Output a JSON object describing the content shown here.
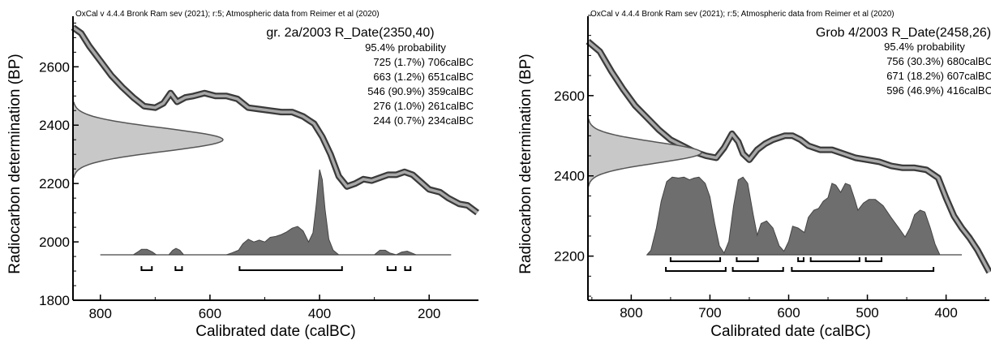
{
  "charts": [
    {
      "header": "OxCal v 4.4.4 Bronk Ram sev (2021); r:5; Atmospheric data from Reimer et al (2020)",
      "sample_title": "gr. 2a/2003 R_Date(2350,40)",
      "probability_heading": "95.4% probability",
      "ranges_text": [
        "725 (1.7%) 706calBC",
        "663 (1.2%) 651calBC",
        "546 (90.9%) 359calBC",
        "276 (1.0%) 261calBC",
        "244 (0.7%) 234calBC"
      ],
      "xlabel": "Calibrated date (calBC)",
      "ylabel": "Radiocarbon determination (BP)",
      "x_ticks": [
        "800",
        "600",
        "400",
        "200"
      ],
      "y_ticks": [
        "1800",
        "2000",
        "2200",
        "2400",
        "2600"
      ]
    },
    {
      "header": "OxCal v 4.4.4 Bronk Ram sev (2021); r:5; Atmospheric data from Reimer et al (2020)",
      "sample_title": "Grob 4/2003 R_Date(2458,26)",
      "probability_heading": "95.4% probability",
      "ranges_text": [
        "756 (30.3%) 680calBC",
        "671 (18.2%) 607calBC",
        "596 (46.9%) 416calBC"
      ],
      "xlabel": "Calibrated date (calBC)",
      "ylabel": "Radiocarbon determination (BP)",
      "x_ticks": [
        "800",
        "700",
        "600",
        "500",
        "400"
      ],
      "y_ticks": [
        "2200",
        "2400",
        "2600"
      ]
    }
  ],
  "chart_data": [
    {
      "type": "area",
      "xlim": [
        850,
        110
      ],
      "ylim": [
        1800,
        2790
      ],
      "x_ticks": [
        800,
        600,
        400,
        200
      ],
      "y_ticks": [
        1800,
        2000,
        2200,
        2400,
        2600
      ],
      "measurement": {
        "bp": 2350,
        "error": 40
      },
      "calibration_curve": [
        [
          850,
          2735
        ],
        [
          835,
          2715
        ],
        [
          820,
          2670
        ],
        [
          800,
          2620
        ],
        [
          780,
          2570
        ],
        [
          760,
          2530
        ],
        [
          740,
          2495
        ],
        [
          720,
          2465
        ],
        [
          700,
          2460
        ],
        [
          685,
          2475
        ],
        [
          672,
          2510
        ],
        [
          660,
          2480
        ],
        [
          645,
          2495
        ],
        [
          630,
          2500
        ],
        [
          610,
          2510
        ],
        [
          590,
          2500
        ],
        [
          570,
          2500
        ],
        [
          550,
          2490
        ],
        [
          530,
          2460
        ],
        [
          510,
          2455
        ],
        [
          490,
          2450
        ],
        [
          470,
          2445
        ],
        [
          450,
          2445
        ],
        [
          430,
          2430
        ],
        [
          410,
          2405
        ],
        [
          395,
          2360
        ],
        [
          380,
          2300
        ],
        [
          365,
          2225
        ],
        [
          350,
          2190
        ],
        [
          335,
          2200
        ],
        [
          320,
          2215
        ],
        [
          305,
          2210
        ],
        [
          290,
          2220
        ],
        [
          275,
          2230
        ],
        [
          260,
          2230
        ],
        [
          245,
          2240
        ],
        [
          230,
          2230
        ],
        [
          215,
          2205
        ],
        [
          200,
          2180
        ],
        [
          180,
          2170
        ],
        [
          165,
          2150
        ],
        [
          145,
          2130
        ],
        [
          130,
          2125
        ],
        [
          112,
          2100
        ]
      ],
      "calibrated_distribution": [
        [
          800,
          0
        ],
        [
          740,
          0
        ],
        [
          732,
          0.03
        ],
        [
          725,
          0.06
        ],
        [
          715,
          0.06
        ],
        [
          705,
          0.03
        ],
        [
          698,
          0
        ],
        [
          675,
          0
        ],
        [
          668,
          0.05
        ],
        [
          662,
          0.07
        ],
        [
          655,
          0.05
        ],
        [
          648,
          0
        ],
        [
          570,
          0
        ],
        [
          560,
          0.02
        ],
        [
          548,
          0.05
        ],
        [
          540,
          0.12
        ],
        [
          530,
          0.17
        ],
        [
          520,
          0.14
        ],
        [
          510,
          0.16
        ],
        [
          500,
          0.14
        ],
        [
          490,
          0.19
        ],
        [
          480,
          0.2
        ],
        [
          470,
          0.22
        ],
        [
          460,
          0.25
        ],
        [
          450,
          0.29
        ],
        [
          440,
          0.31
        ],
        [
          430,
          0.26
        ],
        [
          420,
          0.14
        ],
        [
          412,
          0.24
        ],
        [
          406,
          0.55
        ],
        [
          400,
          0.93
        ],
        [
          395,
          0.82
        ],
        [
          390,
          0.5
        ],
        [
          383,
          0.17
        ],
        [
          375,
          0.05
        ],
        [
          365,
          0
        ],
        [
          300,
          0
        ],
        [
          290,
          0.05
        ],
        [
          280,
          0.05
        ],
        [
          272,
          0.02
        ],
        [
          260,
          0
        ],
        [
          250,
          0.03
        ],
        [
          240,
          0.04
        ],
        [
          232,
          0.02
        ],
        [
          224,
          0
        ],
        [
          160,
          0
        ]
      ],
      "ranges_95_4": [
        [
          725,
          706
        ],
        [
          663,
          651
        ],
        [
          546,
          359
        ],
        [
          276,
          261
        ],
        [
          244,
          234
        ]
      ]
    },
    {
      "type": "area",
      "xlim": [
        855,
        345
      ],
      "ylim": [
        2090,
        2810
      ],
      "x_ticks": [
        800,
        700,
        600,
        500,
        400
      ],
      "y_ticks": [
        2200,
        2400,
        2600
      ],
      "measurement": {
        "bp": 2458,
        "error": 26
      },
      "calibration_curve": [
        [
          855,
          2735
        ],
        [
          840,
          2710
        ],
        [
          825,
          2660
        ],
        [
          810,
          2615
        ],
        [
          795,
          2575
        ],
        [
          780,
          2545
        ],
        [
          765,
          2515
        ],
        [
          750,
          2490
        ],
        [
          735,
          2475
        ],
        [
          720,
          2460
        ],
        [
          705,
          2450
        ],
        [
          692,
          2445
        ],
        [
          682,
          2470
        ],
        [
          672,
          2505
        ],
        [
          664,
          2485
        ],
        [
          658,
          2455
        ],
        [
          650,
          2440
        ],
        [
          640,
          2465
        ],
        [
          630,
          2480
        ],
        [
          620,
          2490
        ],
        [
          605,
          2500
        ],
        [
          595,
          2500
        ],
        [
          585,
          2490
        ],
        [
          575,
          2475
        ],
        [
          560,
          2465
        ],
        [
          545,
          2465
        ],
        [
          530,
          2455
        ],
        [
          515,
          2445
        ],
        [
          500,
          2440
        ],
        [
          485,
          2435
        ],
        [
          470,
          2425
        ],
        [
          455,
          2420
        ],
        [
          440,
          2420
        ],
        [
          425,
          2415
        ],
        [
          410,
          2395
        ],
        [
          400,
          2345
        ],
        [
          390,
          2300
        ],
        [
          380,
          2270
        ],
        [
          370,
          2245
        ],
        [
          360,
          2215
        ],
        [
          345,
          2160
        ]
      ],
      "calibrated_distribution": [
        [
          780,
          0
        ],
        [
          775,
          0.05
        ],
        [
          768,
          0.3
        ],
        [
          762,
          0.6
        ],
        [
          755,
          0.82
        ],
        [
          748,
          0.87
        ],
        [
          740,
          0.86
        ],
        [
          733,
          0.87
        ],
        [
          726,
          0.84
        ],
        [
          720,
          0.86
        ],
        [
          714,
          0.87
        ],
        [
          706,
          0.8
        ],
        [
          700,
          0.65
        ],
        [
          694,
          0.35
        ],
        [
          688,
          0.1
        ],
        [
          682,
          0.02
        ],
        [
          676,
          0.15
        ],
        [
          670,
          0.55
        ],
        [
          664,
          0.84
        ],
        [
          658,
          0.87
        ],
        [
          652,
          0.8
        ],
        [
          645,
          0.45
        ],
        [
          640,
          0.22
        ],
        [
          635,
          0.35
        ],
        [
          628,
          0.38
        ],
        [
          620,
          0.3
        ],
        [
          612,
          0.1
        ],
        [
          606,
          0.04
        ],
        [
          600,
          0.15
        ],
        [
          595,
          0.32
        ],
        [
          588,
          0.3
        ],
        [
          580,
          0.25
        ],
        [
          575,
          0.42
        ],
        [
          568,
          0.5
        ],
        [
          562,
          0.52
        ],
        [
          556,
          0.6
        ],
        [
          550,
          0.64
        ],
        [
          545,
          0.8
        ],
        [
          540,
          0.78
        ],
        [
          534,
          0.7
        ],
        [
          528,
          0.8
        ],
        [
          522,
          0.78
        ],
        [
          516,
          0.62
        ],
        [
          512,
          0.5
        ],
        [
          505,
          0.58
        ],
        [
          498,
          0.62
        ],
        [
          490,
          0.62
        ],
        [
          480,
          0.55
        ],
        [
          470,
          0.42
        ],
        [
          460,
          0.3
        ],
        [
          452,
          0.2
        ],
        [
          446,
          0.3
        ],
        [
          440,
          0.45
        ],
        [
          433,
          0.5
        ],
        [
          427,
          0.48
        ],
        [
          420,
          0.3
        ],
        [
          414,
          0.12
        ],
        [
          408,
          0
        ],
        [
          380,
          0
        ]
      ],
      "ranges_95_4": [
        [
          756,
          680
        ],
        [
          671,
          607
        ],
        [
          596,
          416
        ]
      ],
      "ranges_68_2": [
        [
          750,
          687
        ],
        [
          666,
          639
        ],
        [
          588,
          581
        ],
        [
          572,
          510
        ],
        [
          502,
          482
        ]
      ]
    }
  ]
}
